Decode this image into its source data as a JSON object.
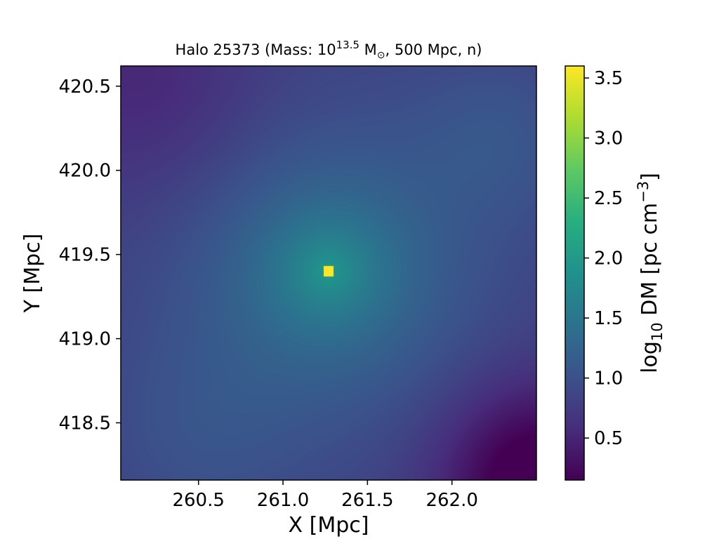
{
  "chart_data": {
    "type": "heatmap",
    "title": {
      "prefix": "Halo 25373 (Mass: 10",
      "exponent": "13.5",
      "unit": " M",
      "unit_subscript": "⊙",
      "suffix": ", 500 Mpc, n)"
    },
    "xlabel": "X [Mpc]",
    "ylabel": "Y [Mpc]",
    "colorbar_label": {
      "prefix": "log",
      "subscript": "10",
      "middle": " DM [pc cm",
      "superscript": "−3",
      "suffix": "]"
    },
    "xlim": [
      260.04,
      262.5
    ],
    "ylim": [
      418.16,
      420.62
    ],
    "xticks": [
      260.5,
      261.0,
      261.5,
      262.0
    ],
    "xtick_labels": [
      "260.5",
      "261.0",
      "261.5",
      "262.0"
    ],
    "yticks": [
      418.5,
      419.0,
      419.5,
      420.0,
      420.5
    ],
    "ytick_labels": [
      "418.5",
      "419.0",
      "419.5",
      "420.0",
      "420.5"
    ],
    "colorbar_range": [
      0.15,
      3.6
    ],
    "colorbar_ticks": [
      0.5,
      1.0,
      1.5,
      2.0,
      2.5,
      3.0,
      3.5
    ],
    "colorbar_tick_labels": [
      "0.5",
      "1.0",
      "1.5",
      "2.0",
      "2.5",
      "3.0",
      "3.5"
    ],
    "colormap": "viridis",
    "grid": false,
    "peak": {
      "x": 261.27,
      "y": 419.4,
      "value": 3.6
    },
    "field_samples": [
      {
        "x": 260.1,
        "y": 420.55,
        "value": 0.6
      },
      {
        "x": 262.45,
        "y": 418.2,
        "value": 0.15
      },
      {
        "x": 262.4,
        "y": 420.55,
        "value": 1.2
      },
      {
        "x": 260.1,
        "y": 418.2,
        "value": 1.3
      },
      {
        "x": 261.27,
        "y": 418.7,
        "value": 1.9
      },
      {
        "x": 261.9,
        "y": 419.4,
        "value": 1.7
      }
    ]
  }
}
